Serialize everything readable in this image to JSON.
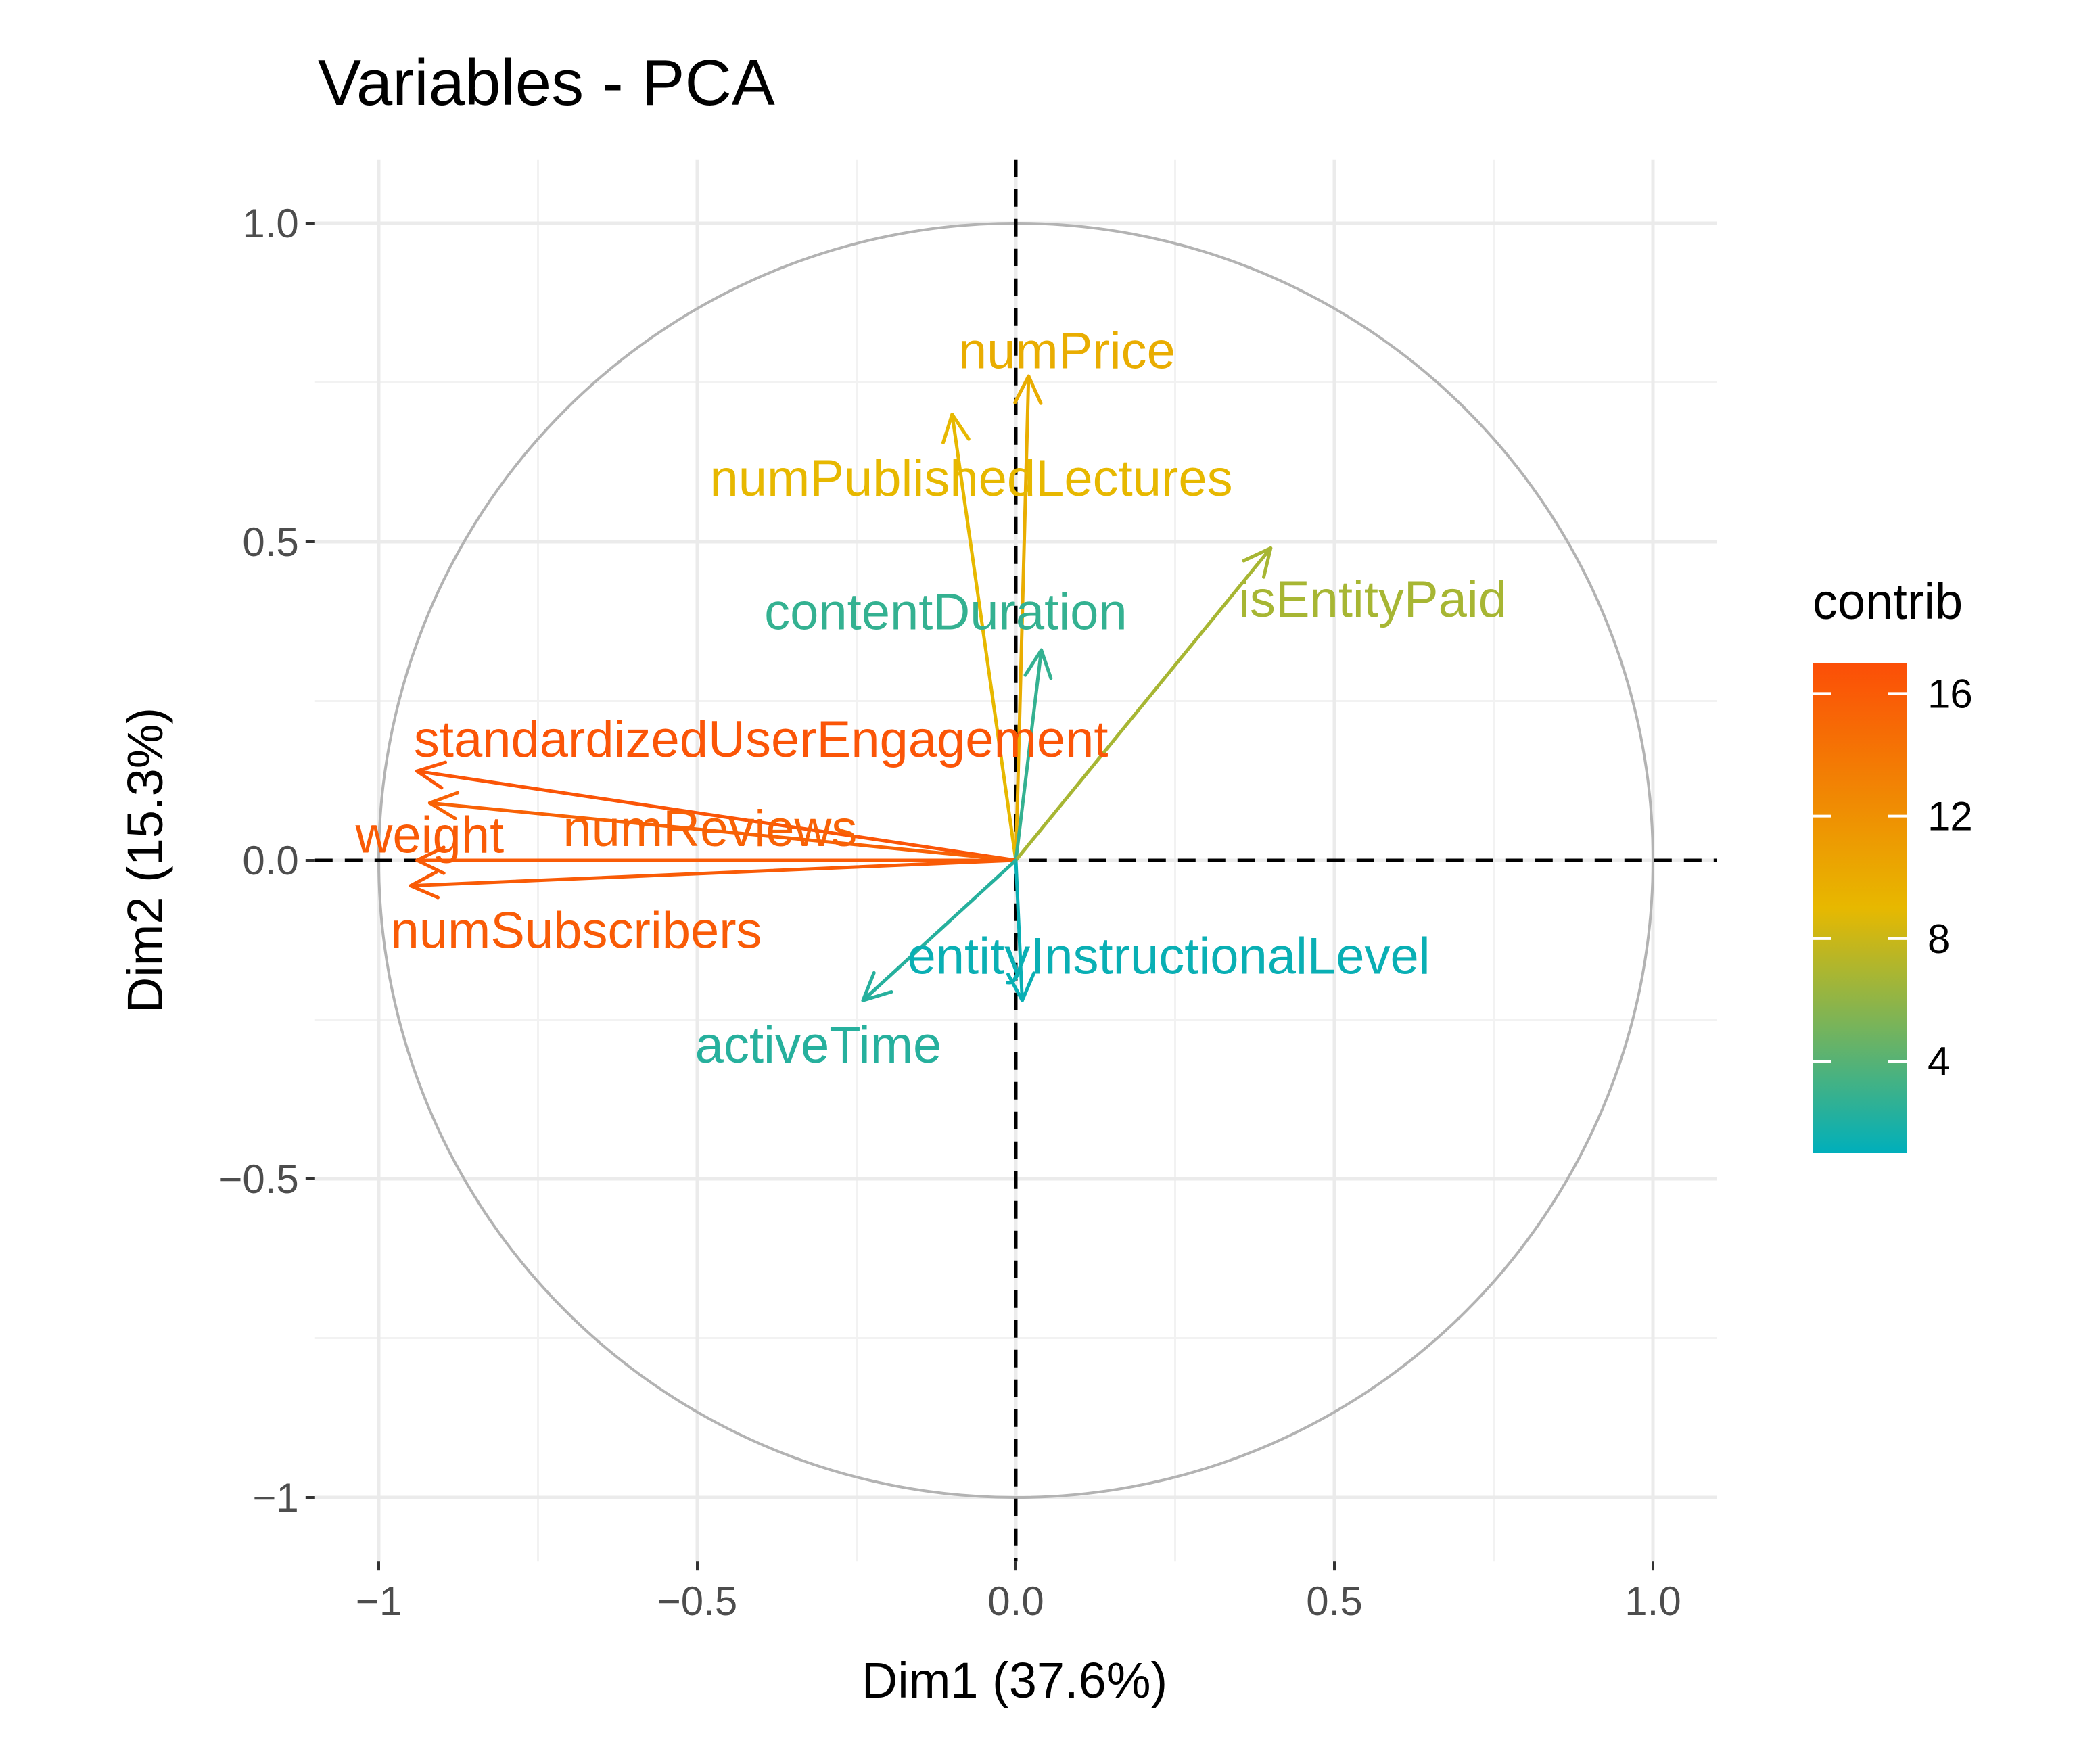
{
  "chart_data": {
    "type": "scatter",
    "subtype": "pca-variable-correlation-circle",
    "title": "Variables - PCA",
    "xlabel": "Dim1 (37.6%)",
    "ylabel": "Dim2 (15.3%)",
    "xlim": [
      -1.1,
      1.1
    ],
    "ylim": [
      -1.1,
      1.1
    ],
    "x_ticks": [
      -1,
      -0.5,
      0,
      0.5,
      1
    ],
    "x_tick_labels": [
      "−1",
      "−0.5",
      "0.0",
      "0.5",
      "1.0"
    ],
    "y_ticks": [
      -1,
      -0.5,
      0,
      0.5,
      1
    ],
    "y_tick_labels": [
      "−1",
      "−0.5",
      "0.0",
      "0.5",
      "1.0"
    ],
    "grid": true,
    "unit_circle": true,
    "legend": {
      "title": "contrib",
      "placement": "right",
      "range": [
        1,
        17
      ],
      "ticks": [
        4,
        8,
        12,
        16
      ],
      "tick_labels": [
        "4",
        "8",
        "12",
        "16"
      ],
      "colors": [
        "#00AFBB",
        "#E7B800",
        "#FC4E07"
      ]
    },
    "variables": [
      {
        "name": "numPrice",
        "x": 0.02,
        "y": 0.76,
        "contrib": 9.8,
        "label_x": 0.08,
        "label_y": 0.8
      },
      {
        "name": "numPublishedLectures",
        "x": -0.1,
        "y": 0.7,
        "contrib": 9.0,
        "label_x": -0.07,
        "label_y": 0.6
      },
      {
        "name": "contentDuration",
        "x": 0.04,
        "y": 0.33,
        "contrib": 2.8,
        "label_x": -0.11,
        "label_y": 0.39
      },
      {
        "name": "isEntityPaid",
        "x": 0.4,
        "y": 0.49,
        "contrib": 6.8,
        "label_x": 0.56,
        "label_y": 0.41
      },
      {
        "name": "standardizedUserEngagement",
        "x": -0.94,
        "y": 0.14,
        "contrib": 16.5,
        "label_x": -0.4,
        "label_y": 0.19
      },
      {
        "name": "numReviews",
        "x": -0.92,
        "y": 0.09,
        "contrib": 15.5,
        "label_x": -0.48,
        "label_y": 0.05
      },
      {
        "name": "weight",
        "x": -0.94,
        "y": 0.0,
        "contrib": 16.0,
        "label_x": -0.92,
        "label_y": 0.04
      },
      {
        "name": "numSubscribers",
        "x": -0.95,
        "y": -0.04,
        "contrib": 16.0,
        "label_x": -0.69,
        "label_y": -0.11
      },
      {
        "name": "entityInstructionalLevel",
        "x": 0.01,
        "y": -0.22,
        "contrib": 1.3,
        "label_x": 0.24,
        "label_y": -0.15
      },
      {
        "name": "activeTime",
        "x": -0.24,
        "y": -0.22,
        "contrib": 2.3,
        "label_x": -0.31,
        "label_y": -0.29
      }
    ]
  }
}
